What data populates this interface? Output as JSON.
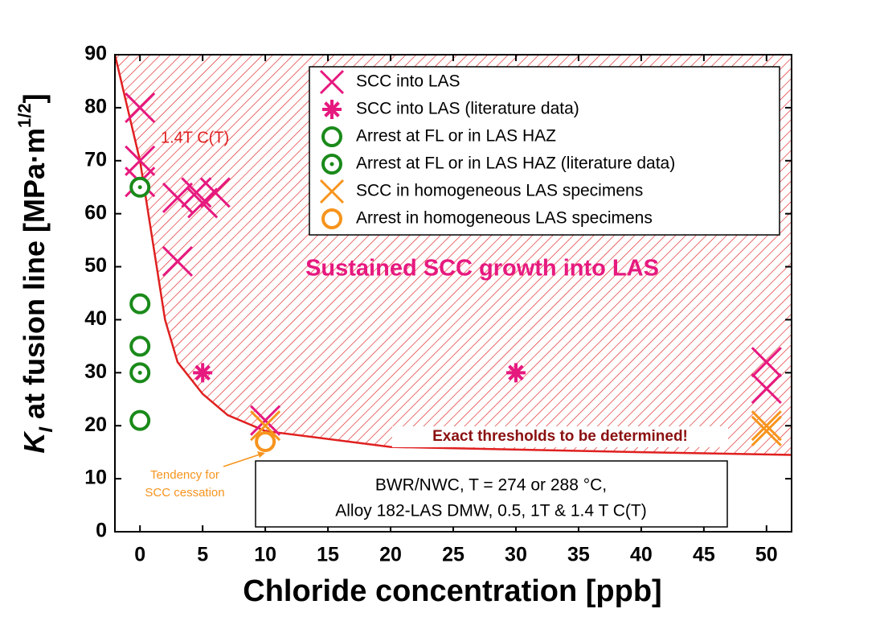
{
  "chart_data": {
    "type": "scatter",
    "ylabel": [
      "K",
      "I",
      " at fusion line [MPa·m",
      "1/2",
      "]"
    ],
    "xlabel": "Chloride concentration [ppb]",
    "xlim": [
      -2,
      52
    ],
    "ylim": [
      0,
      90
    ],
    "xticks": [
      0,
      5,
      10,
      15,
      20,
      25,
      30,
      35,
      40,
      45,
      50
    ],
    "yticks": [
      0,
      10,
      20,
      30,
      40,
      50,
      60,
      70,
      80,
      90
    ],
    "series": [
      {
        "name": "SCC into LAS",
        "color": "#e6197f",
        "marker": "x",
        "x": [
          0,
          0,
          0,
          3,
          4.5,
          5,
          6,
          3,
          10,
          50,
          50
        ],
        "values": [
          80,
          70,
          66,
          63,
          64,
          62,
          64,
          51,
          21,
          32,
          27
        ]
      },
      {
        "name": "SCC into LAS (literature data)",
        "color": "#e6197f",
        "marker": "asterisk",
        "x": [
          5,
          30
        ],
        "values": [
          30,
          30
        ]
      },
      {
        "name": "Arrest at FL or in LAS HAZ",
        "color": "#1a8a1a",
        "marker": "circle",
        "x": [
          0,
          0,
          0
        ],
        "values": [
          43,
          35,
          21
        ]
      },
      {
        "name": "Arrest at FL or in LAS HAZ (literature data)",
        "color": "#1a8a1a",
        "marker": "dot-circle",
        "x": [
          0,
          0
        ],
        "values": [
          65,
          30
        ]
      },
      {
        "name": "SCC in homogeneous LAS specimens",
        "color": "#f7941d",
        "marker": "x",
        "x": [
          10,
          50,
          50
        ],
        "values": [
          20,
          20,
          19
        ]
      },
      {
        "name": "Arrest in homogeneous LAS specimens",
        "color": "#f7941d",
        "marker": "circle",
        "x": [
          10
        ],
        "values": [
          17
        ]
      }
    ],
    "curve": {
      "label": "1.4T C(T)",
      "color": "#e02020",
      "x": [
        -2,
        0,
        1,
        2,
        3,
        5,
        7,
        10,
        20,
        30,
        40,
        52
      ],
      "values": [
        90,
        70,
        55,
        40,
        32,
        26,
        22,
        19,
        16,
        15.5,
        15,
        14.5
      ]
    },
    "region_label": "Sustained SCC growth into LAS",
    "threshold_note": "Exact thresholds to be determined!",
    "tendency_note": [
      "Tendency for",
      "SCC cessation"
    ],
    "conditions": [
      "BWR/NWC, T = 274 or 288 °C,",
      "Alloy 182-LAS DMW, 0.5,  1T & 1.4 T C(T)"
    ]
  }
}
